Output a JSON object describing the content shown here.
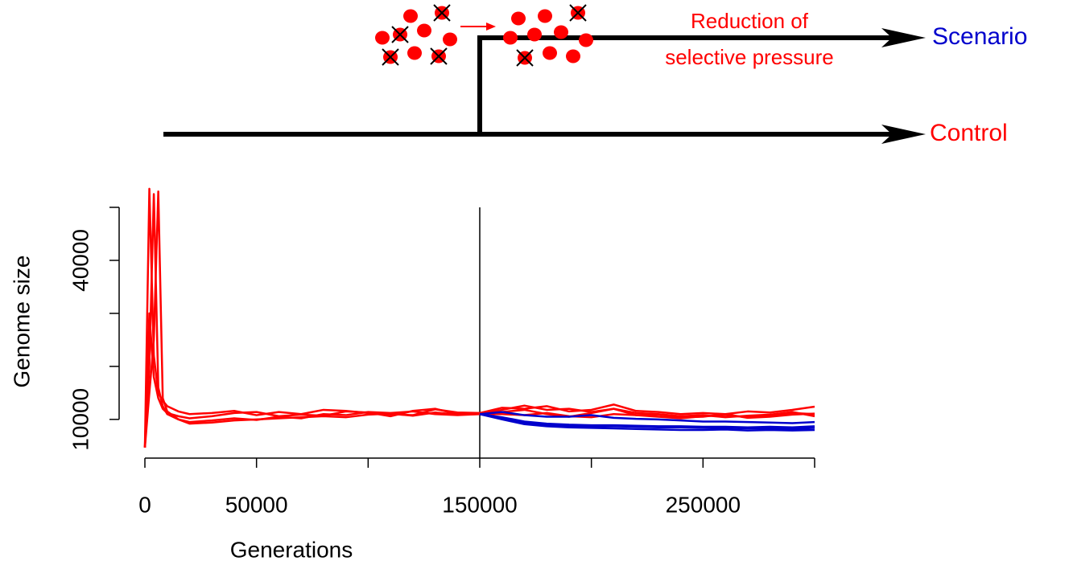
{
  "diagram": {
    "top_label": "Scenario",
    "bottom_label": "Control",
    "annotation": [
      "Reduction of",
      "selective pressure"
    ]
  },
  "chart_data": {
    "type": "line",
    "xlabel": "Generations",
    "ylabel": "Genome size",
    "xlim": [
      0,
      300000
    ],
    "ylim": [
      3000,
      55000
    ],
    "xticks": [
      0,
      50000,
      150000,
      250000
    ],
    "xminorticks": [
      100000,
      200000,
      300000
    ],
    "yticks": [
      10000,
      40000
    ],
    "yminorticks": [
      20000,
      30000,
      50000
    ],
    "vline": 150000,
    "x": [
      0,
      2000,
      4000,
      6000,
      8000,
      10000,
      15000,
      20000,
      30000,
      40000,
      50000,
      60000,
      70000,
      80000,
      90000,
      100000,
      110000,
      120000,
      130000,
      140000,
      150000,
      160000,
      170000,
      180000,
      190000,
      200000,
      210000,
      220000,
      230000,
      240000,
      250000,
      260000,
      270000,
      280000,
      290000,
      300000
    ],
    "series": [
      {
        "color": "#ff0000",
        "values": [
          4700,
          53500,
          22000,
          15000,
          13500,
          12500,
          11500,
          11000,
          11200,
          11600,
          10800,
          11400,
          11000,
          11800,
          11600,
          11200,
          11000,
          10800,
          11900,
          11300,
          11200,
          12200,
          12000,
          12500,
          11500,
          11800,
          12800,
          11600,
          11400,
          11000,
          11200,
          11000,
          11500,
          11300,
          11800,
          12400
        ]
      },
      {
        "color": "#ff0000",
        "values": [
          4700,
          20000,
          52500,
          16000,
          12500,
          11000,
          10000,
          9500,
          9800,
          10200,
          9900,
          10500,
          10200,
          11000,
          10800,
          11400,
          11200,
          11500,
          11000,
          10800,
          11000,
          11000,
          10800,
          11200,
          10600,
          10400,
          11000,
          10800,
          10500,
          10200,
          10600,
          10800,
          10400,
          10600,
          11200,
          11000
        ]
      },
      {
        "color": "#ff0000",
        "values": [
          4700,
          15000,
          25000,
          53000,
          14000,
          11500,
          10000,
          9200,
          9400,
          9800,
          10000,
          10200,
          10400,
          10600,
          10400,
          10900,
          11100,
          10700,
          11300,
          10900,
          11000,
          11800,
          12600,
          11800,
          12000,
          11400,
          12000,
          11200,
          11000,
          10600,
          10800,
          10400,
          10700,
          10900,
          11400,
          10600
        ]
      },
      {
        "color": "#ff0000",
        "values": [
          4700,
          30000,
          18000,
          14000,
          12000,
          11200,
          10600,
          10200,
          10600,
          11200,
          11400,
          10600,
          10900,
          10700,
          11500,
          11300,
          10600,
          11600,
          12000,
          11000,
          11000,
          11400,
          11800,
          11000,
          10500,
          11200,
          12000,
          10800,
          10900,
          10400,
          10500,
          11000,
          10300,
          10500,
          10900,
          11100
        ]
      },
      {
        "color": "#0000cc",
        "x": [
          150000,
          160000,
          170000,
          180000,
          190000,
          200000,
          210000,
          220000,
          230000,
          240000,
          250000,
          260000,
          270000,
          280000,
          290000,
          300000
        ],
        "values": [
          11000,
          11400,
          10800,
          10500,
          10500,
          10800,
          10300,
          10100,
          10000,
          9800,
          9600,
          9600,
          9500,
          9400,
          9300,
          9500
        ]
      },
      {
        "color": "#0000cc",
        "x": [
          150000,
          160000,
          170000,
          180000,
          190000,
          200000,
          210000,
          220000,
          230000,
          240000,
          250000,
          260000,
          270000,
          280000,
          290000,
          300000
        ],
        "values": [
          11000,
          10200,
          9300,
          9000,
          8800,
          8700,
          8700,
          8600,
          8500,
          8500,
          8400,
          8400,
          8300,
          8300,
          8200,
          8400
        ]
      },
      {
        "color": "#0000cc",
        "x": [
          150000,
          160000,
          170000,
          180000,
          190000,
          200000,
          210000,
          220000,
          230000,
          240000,
          250000,
          260000,
          270000,
          280000,
          290000,
          300000
        ],
        "values": [
          11000,
          10000,
          9100,
          8700,
          8500,
          8400,
          8300,
          8200,
          8100,
          8000,
          8000,
          8100,
          7900,
          8000,
          7900,
          8000
        ]
      },
      {
        "color": "#0000cc",
        "x": [
          150000,
          160000,
          170000,
          180000,
          190000,
          200000,
          210000,
          220000,
          230000,
          240000,
          250000,
          260000,
          270000,
          280000,
          290000,
          300000
        ],
        "values": [
          11000,
          10400,
          9600,
          9200,
          9000,
          8900,
          8900,
          8800,
          8700,
          8700,
          8600,
          8600,
          8500,
          8600,
          8500,
          8700
        ]
      }
    ]
  }
}
